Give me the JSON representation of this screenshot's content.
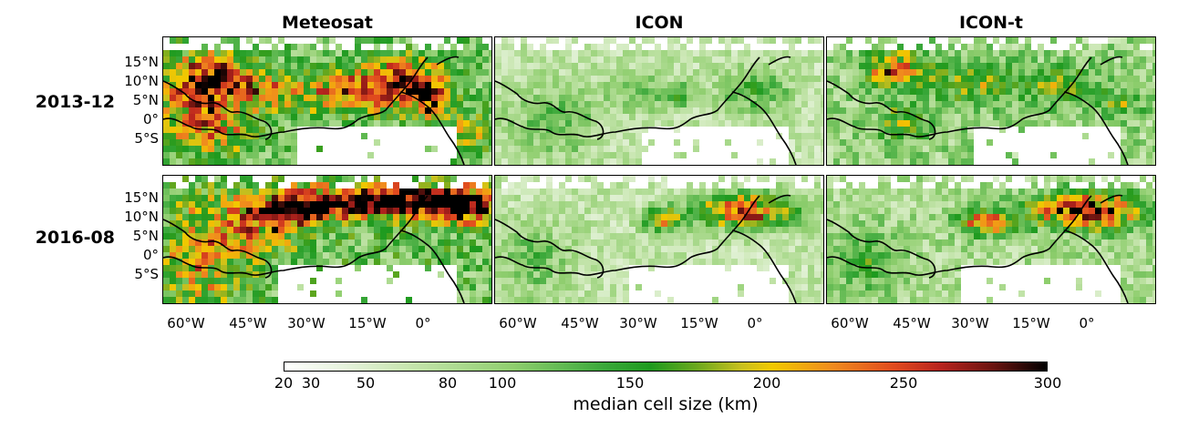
{
  "columns": [
    "Meteosat",
    "ICON",
    "ICON-t"
  ],
  "rows": [
    "2013-12",
    "2016-08"
  ],
  "lat_ticks": [
    "15°N",
    "10°N",
    "5°N",
    "0°",
    "5°S"
  ],
  "lon_ticks": [
    "60°W",
    "45°W",
    "30°W",
    "15°W",
    "0°"
  ],
  "colorbar": {
    "min": 20,
    "max": 300,
    "ticks": [
      "20",
      "30",
      "50",
      "80",
      "100",
      "150",
      "200",
      "250",
      "300"
    ],
    "label": "median cell size (km)"
  }
}
